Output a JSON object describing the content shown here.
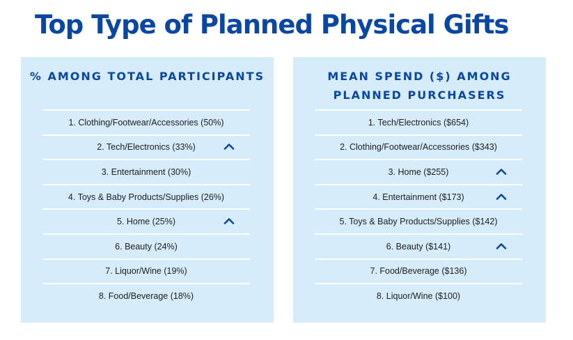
{
  "title": "Top Type of Planned Physical Gifts",
  "colors": {
    "title": "#0a47a3",
    "panel_bg": "#d6ecfa",
    "divider": "#ffffff",
    "arrow": "#0a47a3"
  },
  "left_panel": {
    "header": "% AMONG TOTAL PARTICIPANTS",
    "items": [
      {
        "label": "1. Clothing/Footwear/Accessories (50%)",
        "trend": "none"
      },
      {
        "label": "2. Tech/Electronics (33%)",
        "trend": "up"
      },
      {
        "label": "3. Entertainment (30%)",
        "trend": "none"
      },
      {
        "label": "4. Toys & Baby Products/Supplies (26%)",
        "trend": "none"
      },
      {
        "label": "5. Home (25%)",
        "trend": "up"
      },
      {
        "label": "6. Beauty (24%)",
        "trend": "none"
      },
      {
        "label": "7. Liquor/Wine (19%)",
        "trend": "none"
      },
      {
        "label": "8. Food/Beverage (18%)",
        "trend": "none"
      }
    ]
  },
  "right_panel": {
    "header": "MEAN SPEND ($) AMONG PLANNED PURCHASERS",
    "items": [
      {
        "label": "1. Tech/Electronics ($654)",
        "trend": "none"
      },
      {
        "label": "2. Clothing/Footwear/Accessories ($343)",
        "trend": "none"
      },
      {
        "label": "3. Home ($255)",
        "trend": "up"
      },
      {
        "label": "4. Entertainment ($173)",
        "trend": "up"
      },
      {
        "label": "5. Toys & Baby Products/Supplies ($142)",
        "trend": "none"
      },
      {
        "label": "6. Beauty ($141)",
        "trend": "up"
      },
      {
        "label": "7. Food/Beverage ($136)",
        "trend": "none"
      },
      {
        "label": "8. Liquor/Wine ($100)",
        "trend": "none"
      }
    ]
  }
}
